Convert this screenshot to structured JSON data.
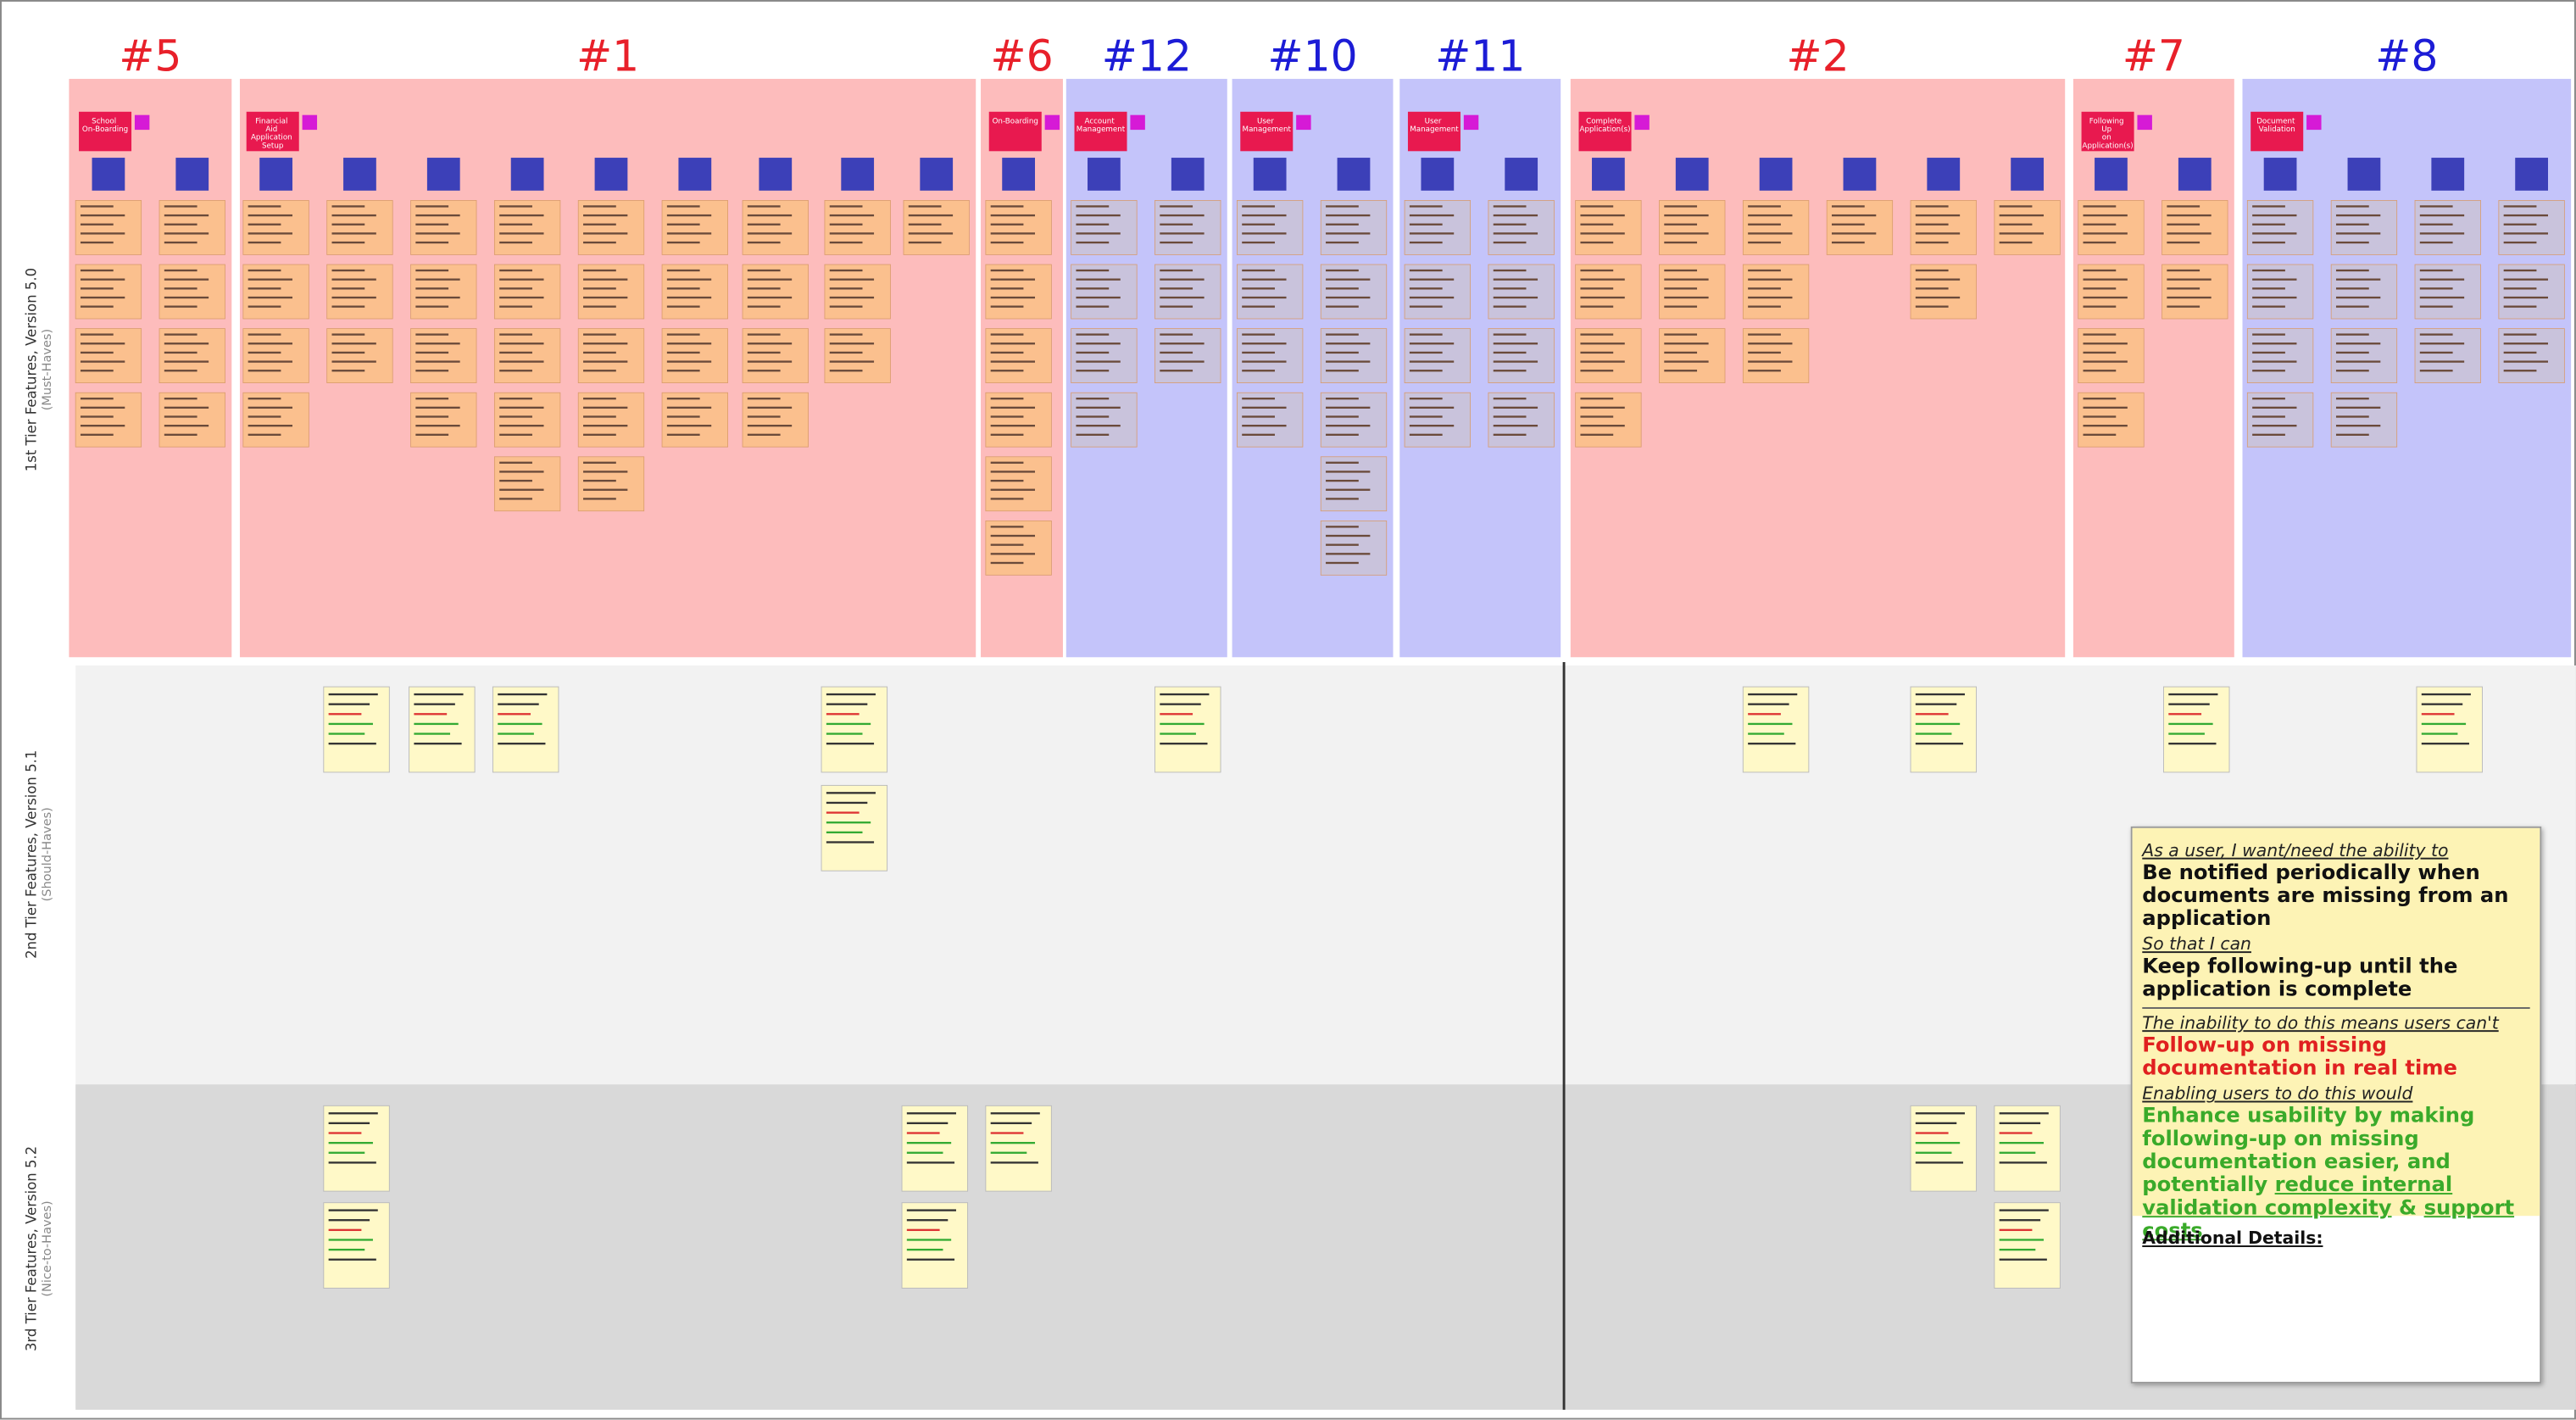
{
  "columns": [
    {
      "header": "#5",
      "header_color": "#e8202a",
      "epic": "School On-Boarding"
    },
    {
      "header": "#1",
      "header_color": "#e8202a",
      "epic": "Financial Aid Application Setup"
    },
    {
      "header": "#6",
      "header_color": "#e8202a",
      "epic": "On-Boarding"
    },
    {
      "header": "#12",
      "header_color": "#1c1cd6",
      "epic": "Account Management"
    },
    {
      "header": "#10",
      "header_color": "#1c1cd6",
      "epic": "User Management"
    },
    {
      "header": "#11",
      "header_color": "#1c1cd6",
      "epic": "User Management"
    },
    {
      "header": "#2",
      "header_color": "#e8202a",
      "epic": "Complete Application(s)"
    },
    {
      "header": "#7",
      "header_color": "#e8202a",
      "epic": "Following Up on Application(s)"
    },
    {
      "header": "#8",
      "header_color": "#1c1cd6",
      "epic": "Document Validation"
    }
  ],
  "rows": [
    {
      "title": "1st Tier Features, Version 5.0",
      "subtitle": "(Must-Haves)"
    },
    {
      "title": "2nd Tier Features, Version 5.1",
      "subtitle": "(Should-Haves)"
    },
    {
      "title": "3rd Tier Features, Version 5.2",
      "subtitle": "(Nice-to-Haves)"
    }
  ],
  "detail_card": {
    "ability_prompt": "As a user, I want/need the ability to",
    "ability": "Be notified periodically when documents are missing from an application",
    "goal_prompt": "So that I can",
    "goal": "Keep following-up until the application is complete",
    "inability_prompt": "The inability to do this means users can't",
    "inability": "Follow-up on missing documentation in real time",
    "benefit_prompt": "Enabling users to do this would",
    "benefit": [
      "Enhance usability by making following-up on missing documentation easier, and potentially ",
      "reduce internal validation complexity",
      " & ",
      "support costs"
    ],
    "details_label": "Additional Details:"
  }
}
